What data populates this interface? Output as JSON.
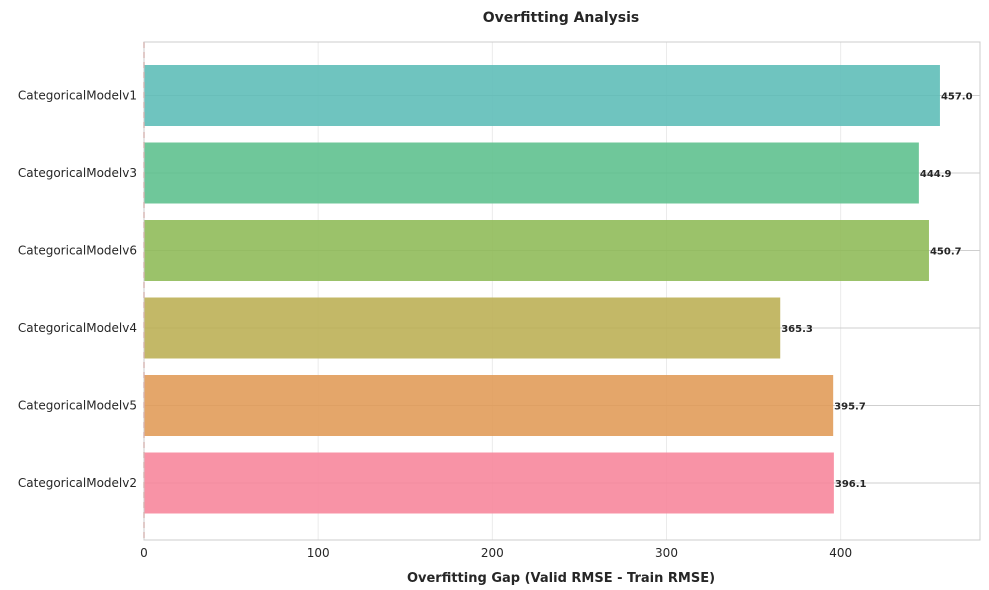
{
  "chart_data": {
    "type": "bar",
    "orientation": "horizontal",
    "title": "Overfitting Analysis",
    "xlabel": "Overfitting Gap (Valid RMSE - Train RMSE)",
    "ylabel": "",
    "categories": [
      "CategoricalModelv1",
      "CategoricalModelv3",
      "CategoricalModelv6",
      "CategoricalModelv4",
      "CategoricalModelv5",
      "CategoricalModelv2"
    ],
    "values": [
      457.0,
      444.9,
      450.7,
      365.3,
      395.7,
      396.1
    ],
    "value_labels": [
      "457.0",
      "444.9",
      "450.7",
      "365.3",
      "395.7",
      "396.1"
    ],
    "colors": [
      "#5bbcb6",
      "#5bbf8c",
      "#8dba55",
      "#bbae52",
      "#e09a55",
      "#f7849a"
    ],
    "xlim": [
      0,
      480
    ],
    "xticks": [
      0,
      100,
      200,
      300,
      400
    ],
    "xtick_labels": [
      "0",
      "100",
      "200",
      "300",
      "400"
    ],
    "grid": true,
    "reference_line_x": 0,
    "reference_line_color": "#e8746f"
  }
}
